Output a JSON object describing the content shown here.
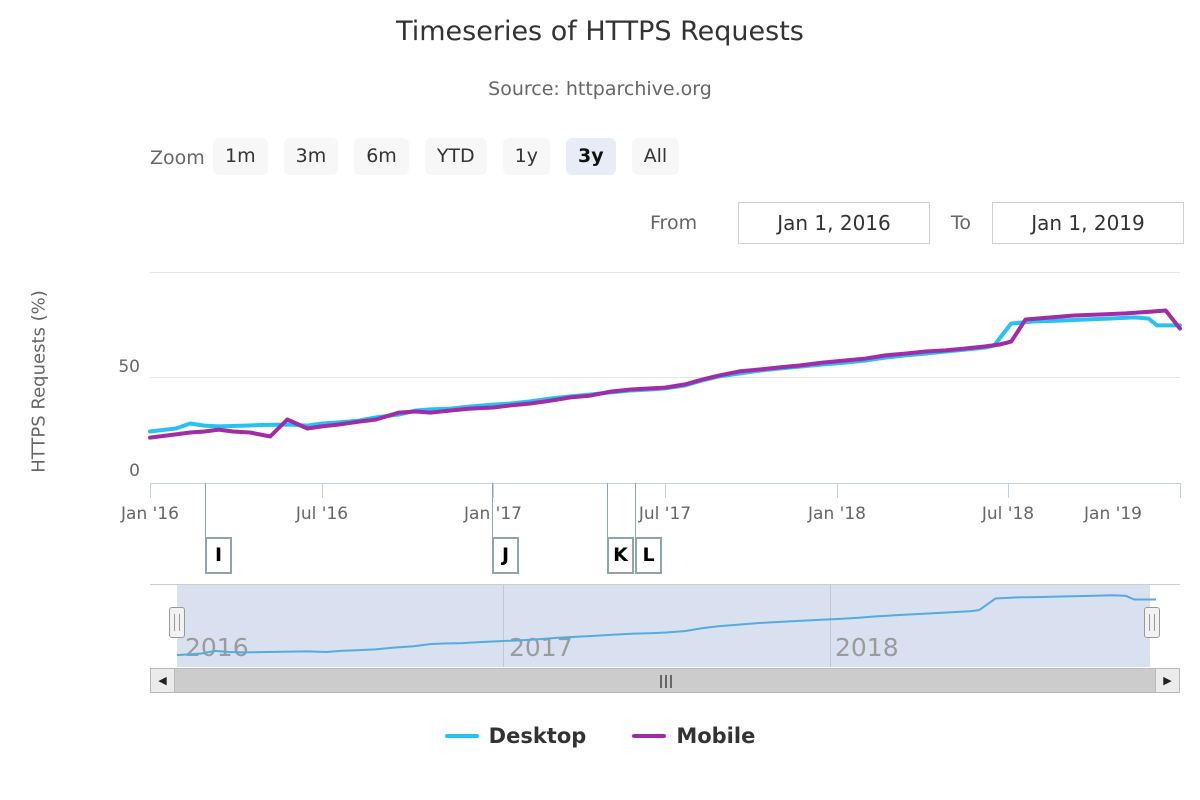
{
  "chart": {
    "title": "Timeseries of HTTPS Requests",
    "subtitle": "Source: httparchive.org"
  },
  "range_selector": {
    "zoom_label": "Zoom",
    "buttons": [
      {
        "label": "1m",
        "selected": false
      },
      {
        "label": "3m",
        "selected": false
      },
      {
        "label": "6m",
        "selected": false
      },
      {
        "label": "YTD",
        "selected": false
      },
      {
        "label": "1y",
        "selected": false
      },
      {
        "label": "3y",
        "selected": true
      },
      {
        "label": "All",
        "selected": false
      }
    ],
    "from_label": "From",
    "from_value": "Jan 1, 2016",
    "to_label": "To",
    "to_value": "Jan 1, 2019"
  },
  "scrollbar": {
    "left_arrow": "◀",
    "right_arrow": "▶"
  },
  "colors": {
    "desktop": "#28c2f2",
    "mobile": "#a02ca6",
    "navigator_line": "#54abe0",
    "axis_line": "#c0d0e0",
    "grid": "#e7e7e7",
    "flag_border": "#8fa4ab",
    "selected_button_bg": "#e8ecf7"
  },
  "chart_data": {
    "type": "line",
    "title": "Timeseries of HTTPS Requests",
    "subtitle": "Source: httparchive.org",
    "xlabel": "",
    "ylabel": "HTTPS Requests (%)",
    "ylim": [
      0,
      103
    ],
    "x_unit": "months_since_jan_2016",
    "x_range_months": [
      0,
      36
    ],
    "grid": true,
    "legend_position": "bottom",
    "yticks": [
      {
        "value": 0,
        "label": "0"
      },
      {
        "value": 50,
        "label": "50"
      }
    ],
    "xticks": [
      {
        "month": 0,
        "label": "Jan '16"
      },
      {
        "month": 6,
        "label": "Jul '16"
      },
      {
        "month": 12,
        "label": "Jan '17"
      },
      {
        "month": 18,
        "label": "Jul '17"
      },
      {
        "month": 24,
        "label": "Jan '18"
      },
      {
        "month": 30,
        "label": "Jul '18"
      },
      {
        "month": 36,
        "label": "Jan '19"
      }
    ],
    "series": [
      {
        "name": "Desktop",
        "color": "#28c2f2",
        "points": [
          [
            0,
            24.3
          ],
          [
            0.9,
            25.7
          ],
          [
            1.4,
            28.1
          ],
          [
            1.9,
            27.1
          ],
          [
            2.4,
            26.7
          ],
          [
            3.3,
            27.1
          ],
          [
            3.9,
            27.4
          ],
          [
            4.8,
            27.6
          ],
          [
            5.5,
            27.1
          ],
          [
            6,
            28.1
          ],
          [
            6.6,
            28.6
          ],
          [
            7.3,
            29.5
          ],
          [
            7.9,
            31
          ],
          [
            8.7,
            32.4
          ],
          [
            9.3,
            34.3
          ],
          [
            9.8,
            34.8
          ],
          [
            10.5,
            35.2
          ],
          [
            11.2,
            36.2
          ],
          [
            12,
            37.1
          ],
          [
            12.6,
            37.6
          ],
          [
            13.3,
            38.6
          ],
          [
            14,
            40
          ],
          [
            14.7,
            41
          ],
          [
            15.4,
            41.9
          ],
          [
            16.1,
            42.9
          ],
          [
            16.8,
            43.8
          ],
          [
            17.5,
            44.3
          ],
          [
            18,
            44.8
          ],
          [
            18.7,
            46.2
          ],
          [
            19.3,
            48.6
          ],
          [
            19.9,
            50.5
          ],
          [
            20.6,
            51.9
          ],
          [
            21.3,
            53.3
          ],
          [
            22,
            54.3
          ],
          [
            22.7,
            55.2
          ],
          [
            23.5,
            56.2
          ],
          [
            24.3,
            57.1
          ],
          [
            25,
            58.1
          ],
          [
            25.7,
            59.5
          ],
          [
            26.4,
            60.5
          ],
          [
            27.1,
            61.4
          ],
          [
            27.8,
            62.4
          ],
          [
            28.5,
            63.3
          ],
          [
            29.2,
            64.3
          ],
          [
            29.5,
            65.2
          ],
          [
            30.1,
            75.7
          ],
          [
            30.9,
            76.7
          ],
          [
            31.8,
            77.1
          ],
          [
            32.7,
            77.6
          ],
          [
            33.6,
            78.1
          ],
          [
            34.4,
            78.6
          ],
          [
            34.9,
            78.1
          ],
          [
            35.2,
            74.8
          ],
          [
            36,
            74.8
          ]
        ]
      },
      {
        "name": "Mobile",
        "color": "#a02ca6",
        "points": [
          [
            0,
            21.4
          ],
          [
            0.9,
            22.9
          ],
          [
            1.4,
            23.8
          ],
          [
            1.9,
            24.3
          ],
          [
            2.4,
            25.2
          ],
          [
            2.9,
            24.3
          ],
          [
            3.5,
            23.8
          ],
          [
            4.2,
            21.9
          ],
          [
            4.8,
            30
          ],
          [
            5.5,
            25.7
          ],
          [
            6,
            26.7
          ],
          [
            6.6,
            27.6
          ],
          [
            7.3,
            29
          ],
          [
            7.9,
            30
          ],
          [
            8.7,
            33.3
          ],
          [
            9.3,
            33.8
          ],
          [
            9.8,
            33.3
          ],
          [
            10.5,
            34.3
          ],
          [
            11.2,
            35.2
          ],
          [
            12,
            35.7
          ],
          [
            12.6,
            36.7
          ],
          [
            13.3,
            37.6
          ],
          [
            14,
            39
          ],
          [
            14.7,
            40.5
          ],
          [
            15.4,
            41.4
          ],
          [
            16.1,
            43.3
          ],
          [
            16.8,
            44.3
          ],
          [
            17.5,
            44.8
          ],
          [
            18,
            45.2
          ],
          [
            18.7,
            46.7
          ],
          [
            19.3,
            49
          ],
          [
            19.9,
            51
          ],
          [
            20.6,
            52.9
          ],
          [
            21.3,
            53.8
          ],
          [
            22,
            54.8
          ],
          [
            22.7,
            55.7
          ],
          [
            23.5,
            57.1
          ],
          [
            24.3,
            58.1
          ],
          [
            25,
            59
          ],
          [
            25.7,
            60.5
          ],
          [
            26.4,
            61.4
          ],
          [
            27.1,
            62.4
          ],
          [
            27.8,
            62.9
          ],
          [
            28.5,
            63.8
          ],
          [
            29.2,
            64.8
          ],
          [
            29.7,
            65.7
          ],
          [
            30.1,
            67.1
          ],
          [
            30.6,
            77.6
          ],
          [
            31.5,
            78.6
          ],
          [
            32.3,
            79.5
          ],
          [
            33.2,
            80
          ],
          [
            34.1,
            80.5
          ],
          [
            35,
            81.4
          ],
          [
            35.5,
            81.9
          ],
          [
            36,
            73.3
          ]
        ]
      }
    ],
    "flags": [
      {
        "label": "I",
        "month": 1.93
      },
      {
        "label": "J",
        "month": 11.97
      },
      {
        "label": "K",
        "month": 15.97
      },
      {
        "label": "L",
        "month": 16.95
      }
    ],
    "navigator": {
      "mirrors_series": "Desktop",
      "line_color": "#54abe0",
      "year_labels": [
        {
          "label": "2016",
          "month": 0.3
        },
        {
          "label": "2017",
          "month": 12.2
        },
        {
          "label": "2018",
          "month": 24.2
        }
      ],
      "year_gridlines_months": [
        12,
        24
      ]
    }
  },
  "legend": {
    "items": [
      {
        "label": "Desktop"
      },
      {
        "label": "Mobile"
      }
    ]
  }
}
